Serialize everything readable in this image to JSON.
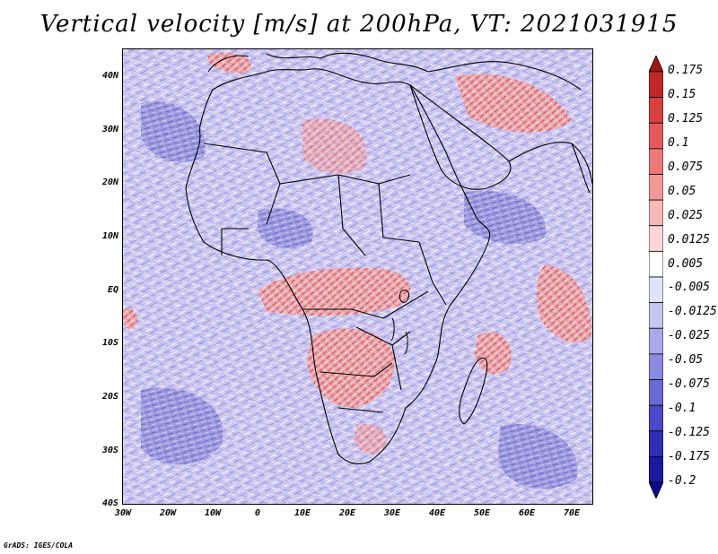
{
  "title": "Vertical velocity [m/s] at 200hPa, VT: 2021031915",
  "credit": "GrADS: IGES/COLA",
  "y_axis": {
    "labels": [
      "40N",
      "30N",
      "20N",
      "10N",
      "EQ",
      "10S",
      "20S",
      "30S",
      "40S"
    ],
    "lat_values": [
      40,
      30,
      20,
      10,
      0,
      -10,
      -20,
      -30,
      -40
    ]
  },
  "x_axis": {
    "labels": [
      "30W",
      "20W",
      "10W",
      "0",
      "10E",
      "20E",
      "30E",
      "40E",
      "50E",
      "60E",
      "70E"
    ],
    "lon_values": [
      -30,
      -20,
      -10,
      0,
      10,
      20,
      30,
      40,
      50,
      60,
      70
    ]
  },
  "map_extent": {
    "lon_min": -30,
    "lon_max": 75,
    "lat_min": -40,
    "lat_max": 45
  },
  "colorbar": {
    "labels": [
      "0.175",
      "0.15",
      "0.125",
      "0.1",
      "0.075",
      "0.05",
      "0.025",
      "0.0125",
      "0.005",
      "-0.005",
      "-0.0125",
      "-0.025",
      "-0.05",
      "-0.075",
      "-0.1",
      "-0.125",
      "-0.175",
      "-0.2"
    ],
    "colors": [
      "#a01414",
      "#c02828",
      "#d84040",
      "#e45a5a",
      "#ec7878",
      "#f29898",
      "#f6b8b8",
      "#fad6d6",
      "#ffffff",
      "#e2e2f8",
      "#c6c6f2",
      "#a8a8ea",
      "#8a8ae0",
      "#6a6ad6",
      "#4a4ac8",
      "#2e2eb4",
      "#1a1aa0",
      "#0c0c88"
    ]
  },
  "regions": {
    "positive": "upward motion (red)",
    "negative": "downward motion (blue)"
  }
}
